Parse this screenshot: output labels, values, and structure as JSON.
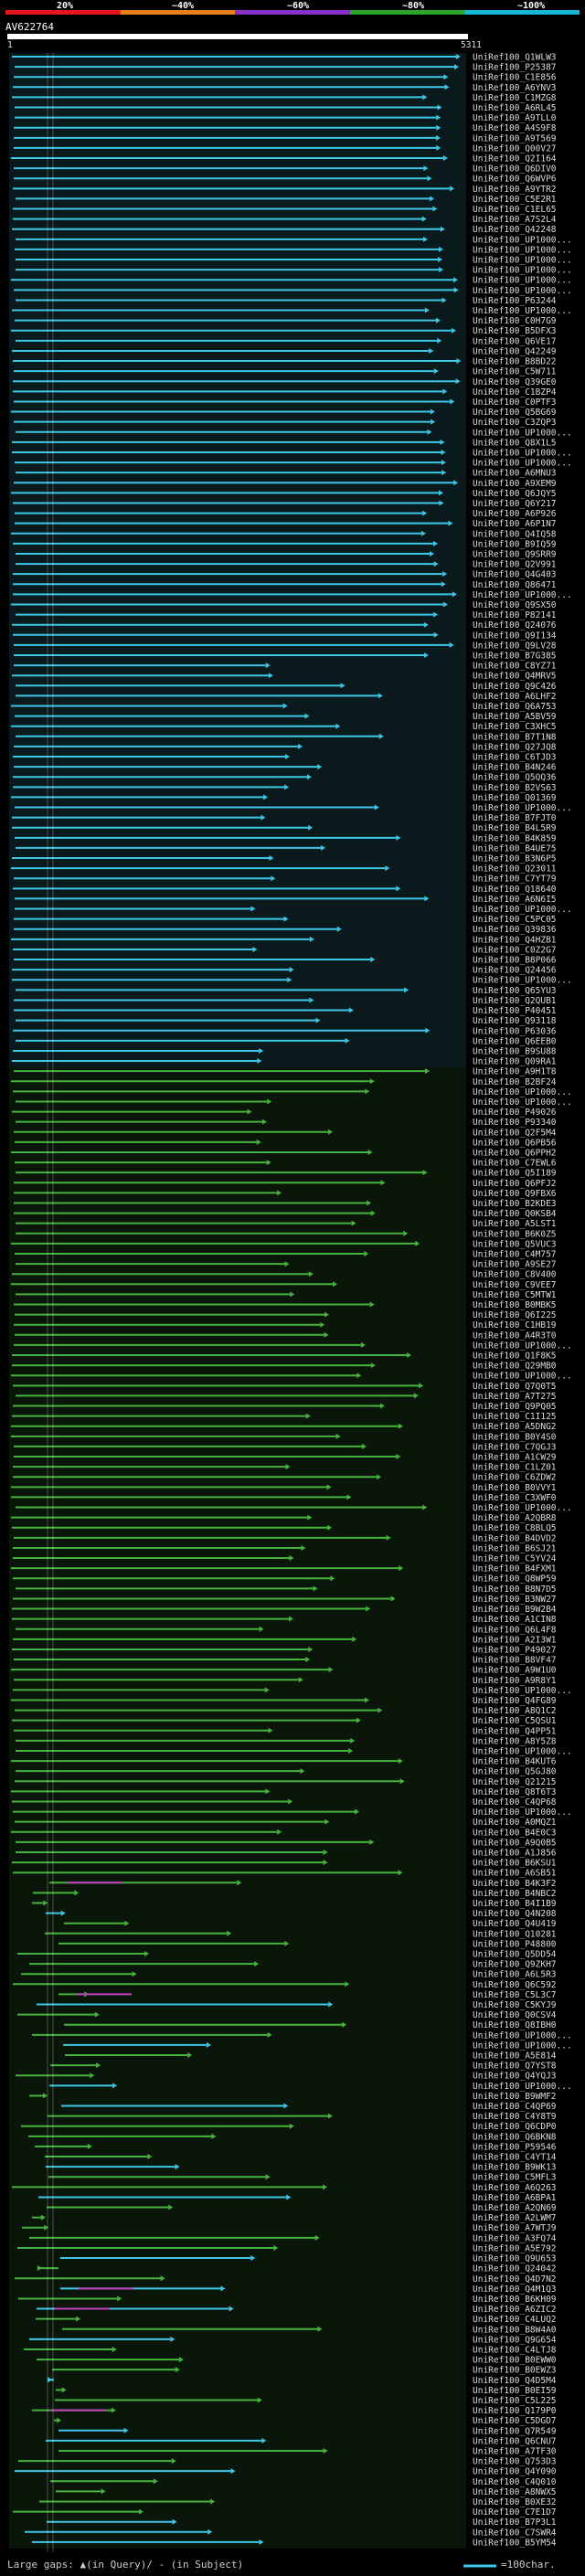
{
  "query_title": "AV622764",
  "ruler": {
    "start": "1",
    "end": "5311"
  },
  "pct_labels": [
    "20%",
    "~40%",
    "~60%",
    "~80%",
    "~100%"
  ],
  "pct_colors": [
    "#e8151b",
    "#e8801a",
    "#8a2fc9",
    "#2aa52a",
    "#13b8d4"
  ],
  "line_colors": {
    "cyan": "#3ec6e6",
    "green": "#46b43c",
    "magenta": "#c040c0"
  },
  "legend_left": "Large gaps: ▲(in Query)/ - (in Subject)",
  "legend_right": "=100char.",
  "hit_ids": [
    "UniRef100_Q1WLW3",
    "UniRef100_P25387",
    "UniRef100_C1E856",
    "UniRef100_A6YNV3",
    "UniRef100_C1MZG8",
    "UniRef100_A6RL45",
    "UniRef100_A9TLL0",
    "UniRef100_A4S9F8",
    "UniRef100_A9T569",
    "UniRef100_Q00V27",
    "UniRef100_Q2I164",
    "UniRef100_Q6DIV0",
    "UniRef100_Q6WVP6",
    "UniRef100_A9YTR2",
    "UniRef100_C5E2R1",
    "UniRef100_C1EL65",
    "UniRef100_A7S2L4",
    "UniRef100_Q42248",
    "UniRef100_UP1000...",
    "UniRef100_UP1000...",
    "UniRef100_UP1000...",
    "UniRef100_UP1000...",
    "UniRef100_UP1000...",
    "UniRef100_UP1000...",
    "UniRef100_P63244",
    "UniRef100_UP1000...",
    "UniRef100_C0H7G9",
    "UniRef100_B5DFX3",
    "UniRef100_Q6VE17",
    "UniRef100_Q42249",
    "UniRef100_B8BD22",
    "UniRef100_C5W711",
    "UniRef100_Q39GE0",
    "UniRef100_C1BZP4",
    "UniRef100_C0PTF3",
    "UniRef100_Q5BG69",
    "UniRef100_C3ZQP3",
    "UniRef100_UP1000...",
    "UniRef100_Q8X1L5",
    "UniRef100_UP1000...",
    "UniRef100_UP1000...",
    "UniRef100_A6MNU3",
    "UniRef100_A9XEM9",
    "UniRef100_Q6JQY5",
    "UniRef100_Q6Y217",
    "UniRef100_A6P926",
    "UniRef100_A6P1N7",
    "UniRef100_Q4IQ58",
    "UniRef100_B9IQ59",
    "UniRef100_Q9SRR9",
    "UniRef100_Q2V991",
    "UniRef100_Q4G403",
    "UniRef100_Q86471",
    "UniRef100_UP1000...",
    "UniRef100_Q9SX50",
    "UniRef100_P82141",
    "UniRef100_Q24076",
    "UniRef100_Q9I134",
    "UniRef100_Q9LV28",
    "UniRef100_B7G385",
    "UniRef100_C8YZ71",
    "UniRef100_Q4MRV5",
    "UniRef100_Q9C426",
    "UniRef100_A6LHF2",
    "UniRef100_Q6A753",
    "UniRef100_A5BV59",
    "UniRef100_C3XHC5",
    "UniRef100_B7T1N8",
    "UniRef100_Q27JQ8",
    "UniRef100_C6TJD3",
    "UniRef100_B4N246",
    "UniRef100_Q5QQ36",
    "UniRef100_B2VS63",
    "UniRef100_Q01369",
    "UniRef100_UP1000...",
    "UniRef100_B7FJT0",
    "UniRef100_B4L5R9",
    "UniRef100_B4K859",
    "UniRef100_B4UE75",
    "UniRef100_B3N6P5",
    "UniRef100_Q23011",
    "UniRef100_C7YT79",
    "UniRef100_Q18640",
    "UniRef100_A6N6I5",
    "UniRef100_UP1000...",
    "UniRef100_C5PC05",
    "UniRef100_Q39836",
    "UniRef100_Q4HZB1",
    "UniRef100_C0Z2G7",
    "UniRef100_B8P066",
    "UniRef100_Q24456",
    "UniRef100_UP1000...",
    "UniRef100_Q65YU3",
    "UniRef100_Q2QUB1",
    "UniRef100_P40451",
    "UniRef100_Q93118",
    "UniRef100_P63036",
    "UniRef100_Q6EEB0",
    "UniRef100_B9SU88",
    "UniRef100_Q09RA1",
    "UniRef100_A9H1T8",
    "UniRef100_B2BF24",
    "UniRef100_UP1000...",
    "UniRef100_UP1000...",
    "UniRef100_P49026",
    "UniRef100_P93340",
    "UniRef100_Q2F5M4",
    "UniRef100_Q6PB56",
    "UniRef100_Q6PPH2",
    "UniRef100_C7EWL6",
    "UniRef100_Q5I189",
    "UniRef100_Q6PFJ2",
    "UniRef100_Q9FBX6",
    "UniRef100_B2KDE3",
    "UniRef100_Q0KSB4",
    "UniRef100_A5LST1",
    "UniRef100_B6K0Z5",
    "UniRef100_Q5VUC3",
    "UniRef100_C4M757",
    "UniRef100_A9SE27",
    "UniRef100_C8V400",
    "UniRef100_C9VEE7",
    "UniRef100_C5MTW1",
    "UniRef100_B0MBK5",
    "UniRef100_Q6I225",
    "UniRef100_C1HB19",
    "UniRef100_A4R3T0",
    "UniRef100_UP1000...",
    "UniRef100_Q1F8K5",
    "UniRef100_Q29MB0",
    "UniRef100_UP1000...",
    "UniRef100_Q7Q0T5",
    "UniRef100_A7T275",
    "UniRef100_Q9PQ05",
    "UniRef100_C1I125",
    "UniRef100_A5DNG2",
    "UniRef100_B0Y4S0",
    "UniRef100_C7QGJ3",
    "UniRef100_A1CW29",
    "UniRef100_C1LZ01",
    "UniRef100_C6ZDW2",
    "UniRef100_B0VVY1",
    "UniRef100_C3XWF0",
    "UniRef100_UP1000...",
    "UniRef100_A2QBR8",
    "UniRef100_C8BLQ5",
    "UniRef100_B4DVD2",
    "UniRef100_B6SJ21",
    "UniRef100_C5YV24",
    "UniRef100_B4FXM1",
    "UniRef100_Q8WP59",
    "UniRef100_B8N7D5",
    "UniRef100_B3NW27",
    "UniRef100_B9W2B4",
    "UniRef100_A1CIN8",
    "UniRef100_Q6L4F8",
    "UniRef100_A2I3W1",
    "UniRef100_P49027",
    "UniRef100_B8VF47",
    "UniRef100_A9W1U0",
    "UniRef100_A9R8Y1",
    "UniRef100_UP1000...",
    "UniRef100_Q4FG89",
    "UniRef100_A8Q1C2",
    "UniRef100_C5QSU1",
    "UniRef100_Q4PP51",
    "UniRef100_A8Y5Z8",
    "UniRef100_UP1000...",
    "UniRef100_B4KUT6",
    "UniRef100_Q5GJ80",
    "UniRef100_Q21215",
    "UniRef100_Q8T6T3",
    "UniRef100_C4QP68",
    "UniRef100_UP1000...",
    "UniRef100_A0MQZ1",
    "UniRef100_B4E0C3",
    "UniRef100_A9Q0B5",
    "UniRef100_A1J856",
    "UniRef100_B6KSU1",
    "UniRef100_A6SB51",
    "UniRef100_B4K3F2",
    "UniRef100_B4NBC2",
    "UniRef100_B4I1B9",
    "UniRef100_Q4N208",
    "UniRef100_Q4U419",
    "UniRef100_Q10281",
    "UniRef100_P48800",
    "UniRef100_Q5DD54",
    "UniRef100_Q9ZKH7",
    "UniRef100_A6L5R3",
    "UniRef100_Q6C592",
    "UniRef100_C5L3C7",
    "UniRef100_C5KYJ9",
    "UniRef100_Q0CSV4",
    "UniRef100_Q8IBH0",
    "UniRef100_UP1000...",
    "UniRef100_UP1000...",
    "UniRef100_A5E814",
    "UniRef100_Q7YST8",
    "UniRef100_Q4YQJ3",
    "UniRef100_UP1000...",
    "UniRef100_B9WMF2",
    "UniRef100_C4QP69",
    "UniRef100_C4Y8T9",
    "UniRef100_Q6CDP0",
    "UniRef100_Q6BKN8",
    "UniRef100_P59546",
    "UniRef100_C4YT14",
    "UniRef100_B9WK13",
    "UniRef100_C5MFL3",
    "UniRef100_A6Q263",
    "UniRef100_A6BPA1",
    "UniRef100_A2QN69",
    "UniRef100_A2LWM7",
    "UniRef100_A7WTJ9",
    "UniRef100_A3FQ74",
    "UniRef100_A5E792",
    "UniRef100_Q9U653",
    "UniRef100_Q24042",
    "UniRef100_Q4D7N2",
    "UniRef100_Q4M1Q3",
    "UniRef100_B6KH09",
    "UniRef100_A6ZIC2",
    "UniRef100_C4LUQ2",
    "UniRef100_B8W4A0",
    "UniRef100_Q9G654",
    "UniRef100_C4LTJ8",
    "UniRef100_B0EWW0",
    "UniRef100_B0EWZ3",
    "UniRef100_Q4D5M4",
    "UniRef100_B0EI59",
    "UniRef100_C5L225",
    "UniRef100_Q179P0",
    "UniRef100_C5DGD7",
    "UniRef100_Q7R549",
    "UniRef100_Q6CNU7",
    "UniRef100_A7TF30",
    "UniRef100_Q753D3",
    "UniRef100_Q4Y090",
    "UniRef100_C4Q010",
    "UniRef100_A8NWX5",
    "UniRef100_B0XE32",
    "UniRef100_C7E1D7",
    "UniRef100_B7P3L1",
    "UniRef100_C7SWR4",
    "UniRef100_B5YM54"
  ]
}
